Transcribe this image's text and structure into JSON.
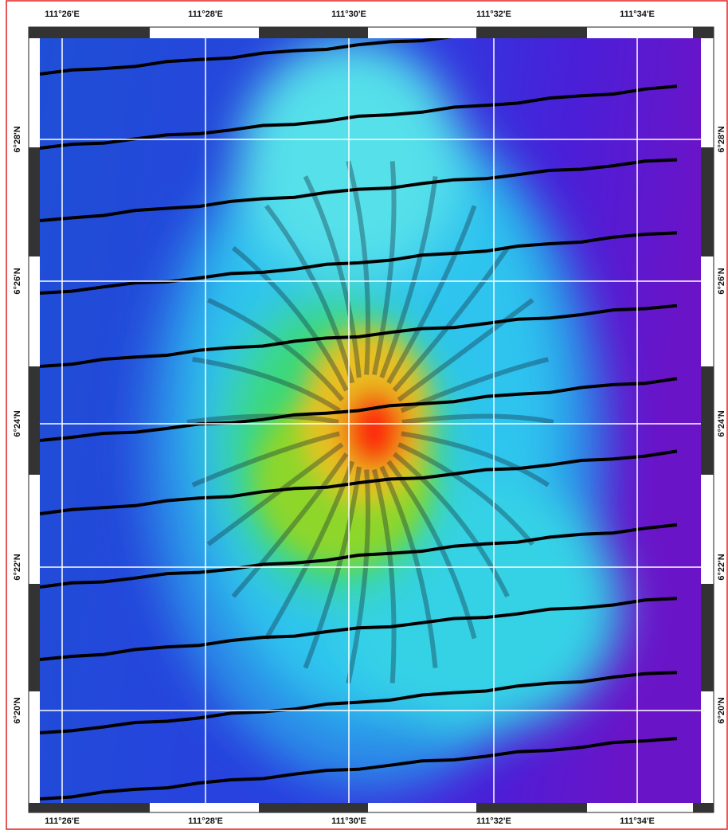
{
  "map": {
    "lon_labels": [
      "111°26'E",
      "111°28'E",
      "111°30'E",
      "111°32'E",
      "111°34'E"
    ],
    "lat_labels": [
      "6°28'N",
      "6°26'N",
      "6°24'N",
      "6°22'N",
      "6°20'N"
    ]
  }
}
